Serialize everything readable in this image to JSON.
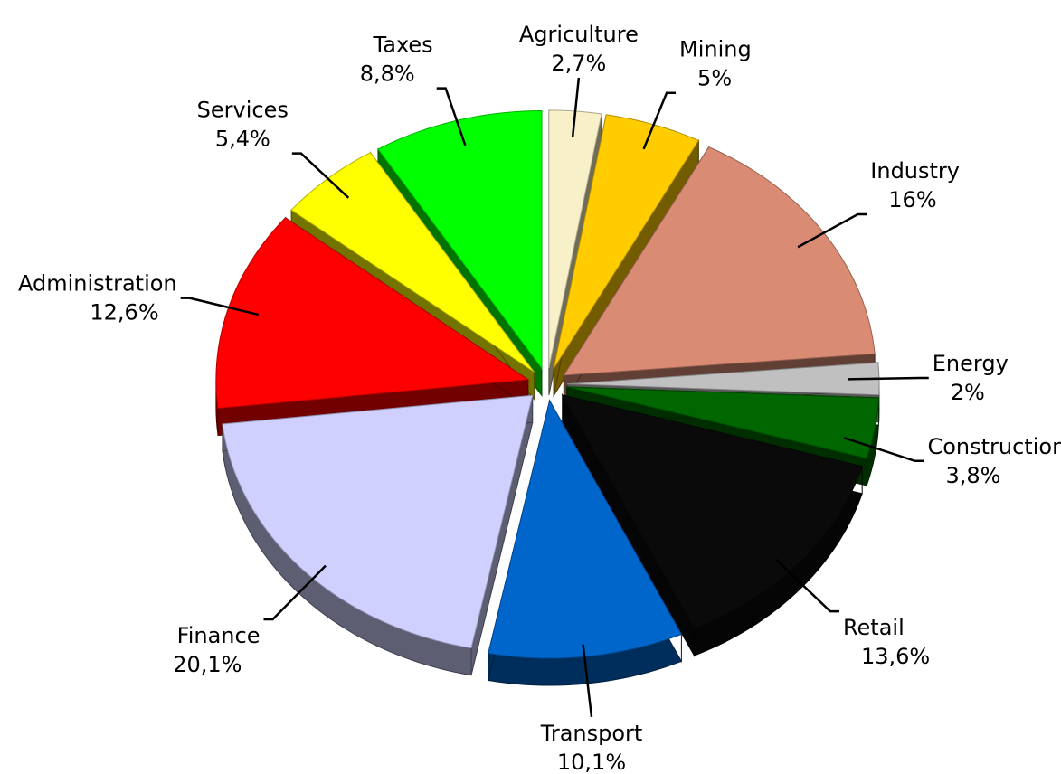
{
  "chart_data": {
    "type": "pie",
    "categories": [
      "Agriculture",
      "Mining",
      "Industry",
      "Energy",
      "Construction",
      "Retail",
      "Transport",
      "Finance",
      "Administration",
      "Services",
      "Taxes"
    ],
    "values": [
      2.7,
      5,
      16,
      2,
      3.8,
      13.6,
      10.1,
      20.1,
      12.6,
      5.4,
      8.8
    ],
    "value_labels": [
      "2,7%",
      "5%",
      "16%",
      "2%",
      "3,8%",
      "13,6%",
      "10,1%",
      "20,1%",
      "12,6%",
      "5,4%",
      "8,8%"
    ],
    "colors": [
      "#f8f0c8",
      "#ffcc00",
      "#d98b73",
      "#c0c0c0",
      "#006600",
      "#0a0a0a",
      "#0066cc",
      "#d0d0ff",
      "#ff0000",
      "#ffff00",
      "#00ff00"
    ]
  }
}
